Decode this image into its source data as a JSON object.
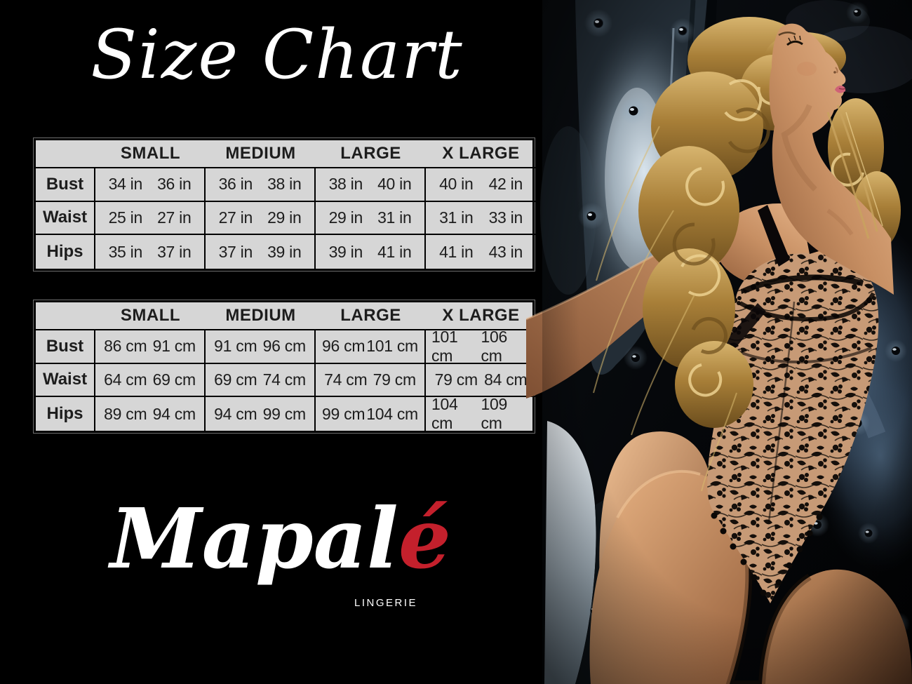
{
  "title": "Size Chart",
  "tables": [
    {
      "id": "inches",
      "size_headers": [
        "SMALL",
        "MEDIUM",
        "LARGE",
        "X LARGE"
      ],
      "rows": [
        {
          "label": "Bust",
          "values": [
            [
              "34 in",
              "36 in"
            ],
            [
              "36 in",
              "38 in"
            ],
            [
              "38 in",
              "40 in"
            ],
            [
              "40 in",
              "42 in"
            ]
          ]
        },
        {
          "label": "Waist",
          "values": [
            [
              "25 in",
              "27 in"
            ],
            [
              "27 in",
              "29 in"
            ],
            [
              "29 in",
              "31 in"
            ],
            [
              "31 in",
              "33 in"
            ]
          ]
        },
        {
          "label": "Hips",
          "values": [
            [
              "35 in",
              "37 in"
            ],
            [
              "37 in",
              "39 in"
            ],
            [
              "39 in",
              "41 in"
            ],
            [
              "41 in",
              "43 in"
            ]
          ]
        }
      ]
    },
    {
      "id": "centimeters",
      "size_headers": [
        "SMALL",
        "MEDIUM",
        "LARGE",
        "X LARGE"
      ],
      "rows": [
        {
          "label": "Bust",
          "values": [
            [
              "86 cm",
              "91 cm"
            ],
            [
              "91 cm",
              "96 cm"
            ],
            [
              "96 cm",
              "101 cm"
            ],
            [
              "101 cm",
              "106 cm"
            ]
          ]
        },
        {
          "label": "Waist",
          "values": [
            [
              "64 cm",
              "69 cm"
            ],
            [
              "69 cm",
              "74 cm"
            ],
            [
              "74 cm",
              "79 cm"
            ],
            [
              "79 cm",
              "84 cm"
            ]
          ]
        },
        {
          "label": "Hips",
          "values": [
            [
              "89 cm",
              "94 cm"
            ],
            [
              "94 cm",
              "99 cm"
            ],
            [
              "99 cm",
              "104 cm"
            ],
            [
              "104 cm",
              "109 cm"
            ]
          ]
        }
      ]
    }
  ],
  "logo": {
    "brand_main": "Mapal",
    "brand_accent": "é",
    "subtitle": "LINGERIE",
    "accent_color": "#c4202c"
  },
  "photo": {
    "description": "Blonde model in black floral lace bodysuit leaning back against dark blue tufted upholstery with crystal buttons"
  },
  "colors": {
    "background": "#000000",
    "table_background": "#d6d6d6",
    "table_text": "#1d1d1d",
    "table_border": "#000000",
    "title_text": "#ffffff"
  }
}
